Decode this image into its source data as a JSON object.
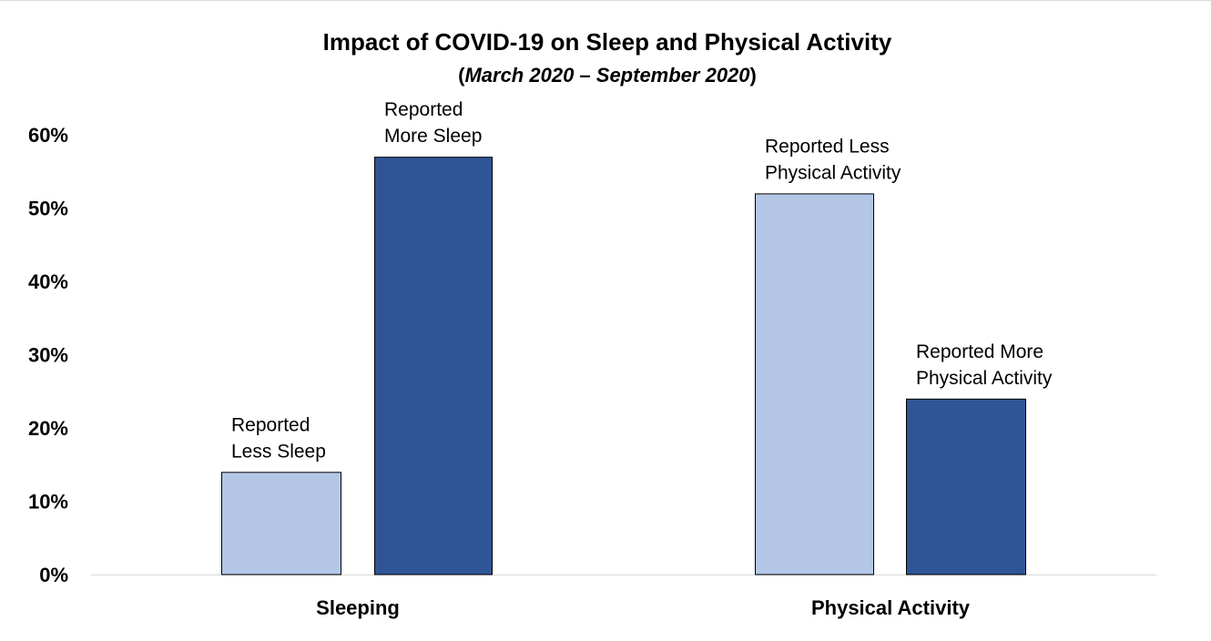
{
  "chart_data": {
    "type": "bar",
    "title": "Impact of COVID-19 on Sleep and Physical Activity",
    "subtitle": {
      "open": "(",
      "text": "March 2020 – September 2020",
      "close": ")"
    },
    "xlabel": "",
    "ylabel": "",
    "ylim": [
      0,
      0.6
    ],
    "y_ticks": [
      {
        "value": 0.0,
        "label": "0%"
      },
      {
        "value": 0.1,
        "label": "10%"
      },
      {
        "value": 0.2,
        "label": "20%"
      },
      {
        "value": 0.3,
        "label": "30%"
      },
      {
        "value": 0.4,
        "label": "40%"
      },
      {
        "value": 0.5,
        "label": "50%"
      },
      {
        "value": 0.6,
        "label": "60%"
      }
    ],
    "grid": false,
    "legend": "none",
    "categories": [
      "Sleeping",
      "Physical Activity"
    ],
    "bars": [
      {
        "category": "Sleeping",
        "label_lines": [
          "Reported",
          "Less Sleep"
        ],
        "value": 0.14,
        "color": "#b4c7e7"
      },
      {
        "category": "Sleeping",
        "label_lines": [
          "Reported",
          "More Sleep"
        ],
        "value": 0.57,
        "color": "#2f5597"
      },
      {
        "category": "Physical Activity",
        "label_lines": [
          "Reported Less",
          "Physical Activity"
        ],
        "value": 0.52,
        "color": "#b4c7e7"
      },
      {
        "category": "Physical Activity",
        "label_lines": [
          "Reported More",
          "Physical Activity"
        ],
        "value": 0.24,
        "color": "#2f5597"
      }
    ],
    "colors": {
      "light_bar": "#b4c7e7",
      "dark_bar": "#2f5597",
      "bar_outline": "#000000",
      "axis_line": "#d9d9d9",
      "text": "#000000"
    }
  }
}
